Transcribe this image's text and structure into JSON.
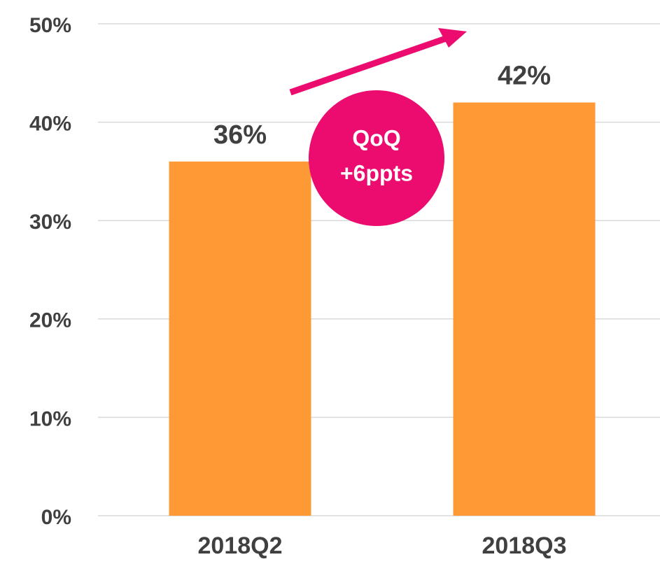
{
  "chart_data": {
    "type": "bar",
    "categories": [
      "2018Q2",
      "2018Q3"
    ],
    "values": [
      36,
      42
    ],
    "value_labels": [
      "36%",
      "42%"
    ],
    "color": "#fd9a35",
    "ylim": [
      0,
      50
    ],
    "yticks": [
      {
        "value": 0,
        "label": "0%"
      },
      {
        "value": 10,
        "label": "10%"
      },
      {
        "value": 20,
        "label": "20%"
      },
      {
        "value": 30,
        "label": "30%"
      },
      {
        "value": 40,
        "label": "40%"
      },
      {
        "value": 50,
        "label": "50%"
      }
    ],
    "grid": true,
    "annotations": [
      "QoQ",
      "+6ppts"
    ]
  }
}
